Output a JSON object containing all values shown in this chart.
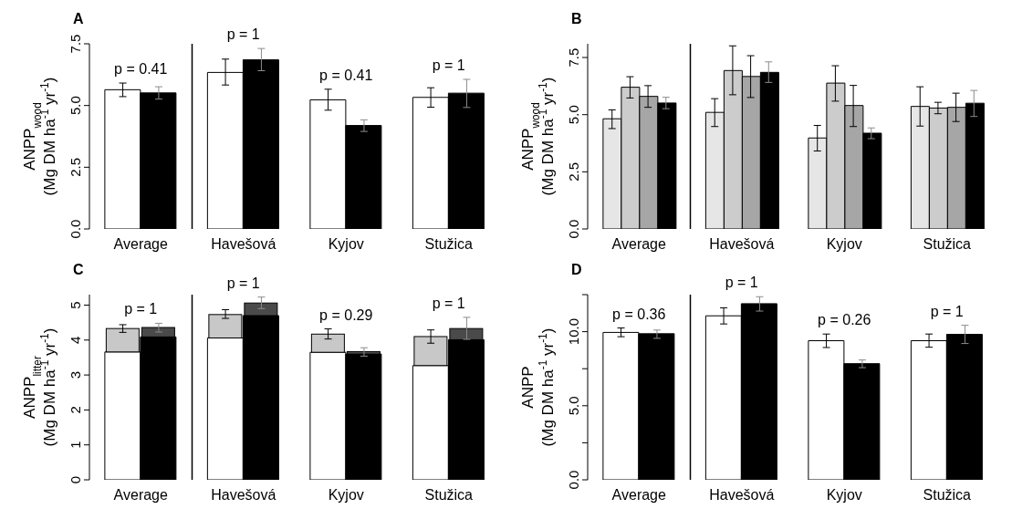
{
  "chart_data": [
    {
      "type": "bar",
      "title": "A",
      "ylabel": "ANPP$_{wood}$\n(Mg DM ha$^{-1}$ yr$^{-1}$)",
      "categories": [
        "Average",
        "Havešová",
        "Kyjov",
        "Stužica"
      ],
      "series": [
        {
          "color": "#ffffff",
          "values": [
            5.64,
            6.34,
            5.23,
            5.33
          ],
          "errors": [
            [
              5.36,
              5.91
            ],
            [
              5.83,
              6.88
            ],
            [
              4.81,
              5.66
            ],
            [
              4.93,
              5.72
            ]
          ]
        },
        {
          "color": "#000000",
          "values": [
            5.51,
            6.85,
            4.19,
            5.5
          ],
          "errors": [
            [
              5.26,
              5.76
            ],
            [
              6.41,
              7.31
            ],
            [
              3.95,
              4.42
            ],
            [
              4.92,
              6.06
            ]
          ]
        }
      ],
      "ylim": [
        0,
        7.5
      ],
      "yticks": [
        {
          "value": 0,
          "label": "0.0"
        },
        2.5,
        {
          "value": 5,
          "label": "5.0"
        },
        7.5
      ],
      "annotations": [
        "p = 0.41",
        "p = 1",
        "p = 0.41",
        "p = 1"
      ]
    },
    {
      "type": "bar",
      "title": "B",
      "ylabel": "ANPP$_{wood}$\n(Mg DM ha$^{-1}$ yr$^{-1}$)",
      "categories": [
        "Average",
        "Havešová",
        "Kyjov",
        "Stužica"
      ],
      "series": [
        {
          "color": "#e6e6e6",
          "values": [
            4.82,
            5.1,
            3.98,
            5.36
          ],
          "errors": [
            [
              4.39,
              5.21
            ],
            [
              4.48,
              5.7
            ],
            [
              3.41,
              4.53
            ],
            [
              4.5,
              6.22
            ]
          ]
        },
        {
          "color": "#cccccc",
          "values": [
            6.2,
            6.93,
            6.38,
            5.29
          ],
          "errors": [
            [
              5.73,
              6.66
            ],
            [
              5.87,
              8.01
            ],
            [
              5.59,
              7.14
            ],
            [
              5.04,
              5.54
            ]
          ]
        },
        {
          "color": "#a6a6a6",
          "values": [
            5.8,
            6.67,
            5.4,
            5.32
          ],
          "errors": [
            [
              5.32,
              6.27
            ],
            [
              5.75,
              7.58
            ],
            [
              4.48,
              6.28
            ],
            [
              4.7,
              5.94
            ]
          ]
        },
        {
          "color": "#000000",
          "values": [
            5.51,
            6.85,
            4.19,
            5.5
          ],
          "errors": [
            [
              5.26,
              5.76
            ],
            [
              6.41,
              7.31
            ],
            [
              3.95,
              4.42
            ],
            [
              4.92,
              6.06
            ]
          ]
        }
      ],
      "ylim": [
        0,
        8.1
      ],
      "yticks": [
        {
          "value": 0,
          "label": "0.0"
        },
        2.5,
        {
          "value": 5,
          "label": "5.0"
        },
        7.5
      ]
    },
    {
      "type": "bar",
      "title": "C",
      "ylabel": "ANPP$_{litter}$\n(Mg DM ha$^{-1}$ yr$^{-1}$)",
      "categories": [
        "Average",
        "Havešová",
        "Kyjov",
        "Stužica"
      ],
      "series": [
        {
          "color": "#ffffff",
          "values": [
            3.66,
            4.06,
            3.65,
            3.27
          ]
        },
        {
          "color": "#c8c8c8",
          "base": [
            3.66,
            4.06,
            3.65,
            3.27
          ],
          "values": [
            0.67,
            0.67,
            0.52,
            0.83
          ],
          "errors": [
            [
              4.22,
              4.44
            ],
            [
              4.62,
              4.87
            ],
            [
              4.03,
              4.32
            ],
            [
              3.91,
              4.29
            ]
          ]
        },
        {
          "color": "#000000",
          "values": [
            4.09,
            4.7,
            3.6,
            4.01
          ]
        },
        {
          "color": "#4a4a4a",
          "base": [
            4.09,
            4.7,
            3.6,
            4.01
          ],
          "values": [
            0.27,
            0.36,
            0.07,
            0.32
          ],
          "errors": [
            [
              4.23,
              4.48
            ],
            [
              4.9,
              5.23
            ],
            [
              3.54,
              3.78
            ],
            [
              4.02,
              4.65
            ]
          ]
        }
      ],
      "ylim": [
        0,
        5.3
      ],
      "yticks": [
        0,
        1,
        2,
        3,
        4,
        5
      ],
      "annotations": [
        "p = 1",
        "p = 1",
        "p = 0.29",
        "p = 1"
      ]
    },
    {
      "type": "bar",
      "title": "D",
      "ylabel": "ANPP\n(Mg DM ha$^{-1}$ yr$^{-1}$)",
      "categories": [
        "Average",
        "Havešová",
        "Kyjov",
        "Stužica"
      ],
      "series": [
        {
          "color": "#ffffff",
          "values": [
            9.95,
            11.07,
            9.39,
            9.39
          ],
          "errors": [
            [
              9.66,
              10.25
            ],
            [
              10.52,
              11.61
            ],
            [
              8.93,
              9.84
            ],
            [
              8.95,
              9.84
            ]
          ]
        },
        {
          "color": "#000000",
          "values": [
            9.86,
            11.89,
            7.84,
            9.82
          ],
          "errors": [
            [
              9.55,
              10.11
            ],
            [
              11.39,
              12.36
            ],
            [
              7.57,
              8.09
            ],
            [
              9.2,
              10.43
            ]
          ]
        }
      ],
      "ylim": [
        0,
        12.5
      ],
      "yticks": [
        {
          "value": 0,
          "label": "0.0"
        },
        {
          "value": 2.5,
          "label": null
        },
        {
          "value": 5,
          "label": "5.0"
        },
        {
          "value": 7.5,
          "label": null
        },
        {
          "value": 10,
          "label": "10.0"
        },
        {
          "value": 12.5,
          "label": null
        }
      ],
      "annotations": [
        "p = 0.36",
        "p = 1",
        "p = 0.26",
        "p = 1"
      ]
    }
  ]
}
